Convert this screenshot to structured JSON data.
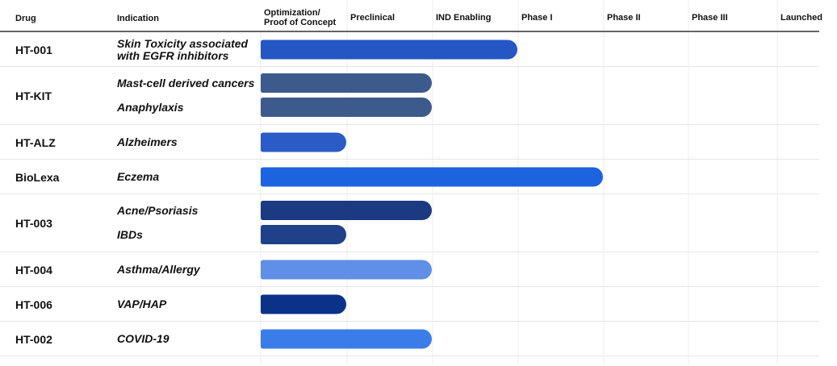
{
  "header": {
    "drug": "Drug",
    "indication": "Indication"
  },
  "stages": [
    "Optimization/\nProof of Concept",
    "Preclinical",
    "IND Enabling",
    "Phase I",
    "Phase II",
    "Phase III",
    "Launched"
  ],
  "drugs": [
    {
      "name": "HT-001",
      "indications": [
        {
          "label": "Skin Toxicity associated\nwith EGFR inhibitors",
          "progress": 3,
          "color": "#2557c4"
        }
      ]
    },
    {
      "name": "HT-KIT",
      "indications": [
        {
          "label": "Mast-cell derived cancers",
          "progress": 2,
          "color": "#3d5a8c"
        },
        {
          "label": "Anaphylaxis",
          "progress": 2,
          "color": "#3d5a8c"
        }
      ]
    },
    {
      "name": "HT-ALZ",
      "indications": [
        {
          "label": "Alzheimers",
          "progress": 1,
          "color": "#2a5bc6"
        }
      ]
    },
    {
      "name": "BioLexa",
      "indications": [
        {
          "label": "Eczema",
          "progress": 4,
          "color": "#1c63e0"
        }
      ]
    },
    {
      "name": "HT-003",
      "indications": [
        {
          "label": "Acne/Psoriasis",
          "progress": 2,
          "color": "#1b3a82"
        },
        {
          "label": "IBDs",
          "progress": 1,
          "color": "#1e4189"
        }
      ]
    },
    {
      "name": "HT-004",
      "indications": [
        {
          "label": "Asthma/Allergy",
          "progress": 2,
          "color": "#5f8fe6"
        }
      ]
    },
    {
      "name": "HT-006",
      "indications": [
        {
          "label": "VAP/HAP",
          "progress": 1,
          "color": "#0a3388"
        }
      ]
    },
    {
      "name": "HT-002",
      "indications": [
        {
          "label": "COVID-19",
          "progress": 2,
          "color": "#3a7de8"
        }
      ]
    }
  ]
}
